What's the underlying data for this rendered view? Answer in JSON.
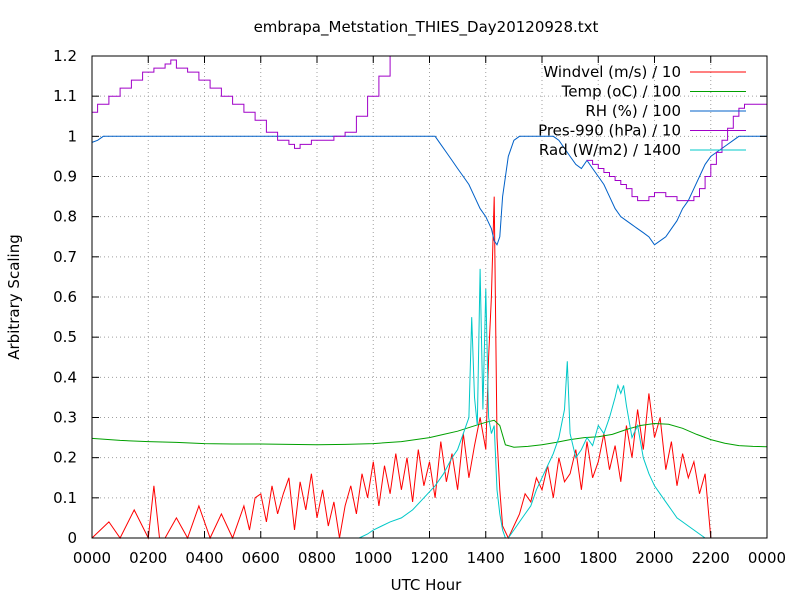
{
  "chart_data": {
    "type": "line",
    "title": "embrapa_Metstation_THIES_Day20120928.txt",
    "xlabel": "UTC Hour",
    "ylabel": "Arbitrary Scaling",
    "xlim": [
      0,
      2400
    ],
    "ylim": [
      0,
      1.2
    ],
    "x_ticks": [
      "0000",
      "0200",
      "0400",
      "0600",
      "0800",
      "1000",
      "1200",
      "1400",
      "1600",
      "1800",
      "2000",
      "2200",
      "0000"
    ],
    "y_ticks": [
      "0",
      "0.1",
      "0.2",
      "0.3",
      "0.4",
      "0.5",
      "0.6",
      "0.7",
      "0.8",
      "0.9",
      "1",
      "1.1",
      "1.2"
    ],
    "grid": true,
    "legend_position": "top-right",
    "series": [
      {
        "name": "Windvel (m/s) / 10",
        "color": "#ff0000",
        "x": [
          0,
          60,
          100,
          150,
          200,
          220,
          240,
          260,
          300,
          340,
          380,
          420,
          460,
          500,
          540,
          560,
          580,
          600,
          620,
          640,
          660,
          680,
          700,
          720,
          740,
          760,
          780,
          800,
          820,
          840,
          860,
          880,
          900,
          920,
          940,
          960,
          980,
          1000,
          1020,
          1040,
          1060,
          1080,
          1100,
          1120,
          1140,
          1160,
          1180,
          1200,
          1220,
          1240,
          1260,
          1280,
          1300,
          1320,
          1340,
          1360,
          1380,
          1400,
          1410,
          1420,
          1430,
          1440,
          1450,
          1460,
          1480,
          1500,
          1520,
          1540,
          1560,
          1580,
          1600,
          1620,
          1640,
          1660,
          1680,
          1700,
          1720,
          1740,
          1760,
          1780,
          1800,
          1820,
          1840,
          1860,
          1880,
          1900,
          1920,
          1940,
          1960,
          1980,
          2000,
          2020,
          2040,
          2060,
          2080,
          2100,
          2120,
          2140,
          2160,
          2180,
          2200
        ],
        "y": [
          0,
          0.04,
          0,
          0.07,
          0,
          0.13,
          0,
          0,
          0.05,
          0,
          0.08,
          0,
          0.06,
          0,
          0.08,
          0.02,
          0.1,
          0.11,
          0.04,
          0.13,
          0.06,
          0.11,
          0.15,
          0.02,
          0.14,
          0.07,
          0.16,
          0.05,
          0.12,
          0.03,
          0.09,
          0,
          0.08,
          0.13,
          0.06,
          0.16,
          0.1,
          0.19,
          0.08,
          0.18,
          0.11,
          0.21,
          0.12,
          0.2,
          0.09,
          0.22,
          0.13,
          0.19,
          0.1,
          0.24,
          0.14,
          0.21,
          0.12,
          0.26,
          0.15,
          0.23,
          0.3,
          0.22,
          0.45,
          0.6,
          0.85,
          0.25,
          0.12,
          0.03,
          0,
          0.03,
          0.06,
          0.11,
          0.09,
          0.15,
          0.12,
          0.18,
          0.1,
          0.2,
          0.14,
          0.16,
          0.22,
          0.12,
          0.24,
          0.15,
          0.19,
          0.26,
          0.17,
          0.23,
          0.14,
          0.28,
          0.2,
          0.32,
          0.22,
          0.36,
          0.25,
          0.3,
          0.17,
          0.24,
          0.13,
          0.21,
          0.15,
          0.19,
          0.11,
          0.16,
          0
        ]
      },
      {
        "name": "Temp (oC) / 100",
        "color": "#00a000",
        "x": [
          0,
          100,
          200,
          300,
          400,
          500,
          600,
          700,
          800,
          900,
          1000,
          1100,
          1200,
          1250,
          1300,
          1350,
          1400,
          1430,
          1450,
          1470,
          1500,
          1550,
          1600,
          1650,
          1700,
          1750,
          1800,
          1850,
          1900,
          1950,
          2000,
          2050,
          2100,
          2150,
          2200,
          2250,
          2300,
          2350,
          2400
        ],
        "y": [
          0.248,
          0.243,
          0.24,
          0.238,
          0.235,
          0.234,
          0.234,
          0.233,
          0.232,
          0.233,
          0.235,
          0.24,
          0.25,
          0.258,
          0.266,
          0.277,
          0.288,
          0.293,
          0.28,
          0.232,
          0.226,
          0.228,
          0.232,
          0.238,
          0.245,
          0.25,
          0.252,
          0.258,
          0.27,
          0.28,
          0.285,
          0.283,
          0.273,
          0.258,
          0.245,
          0.236,
          0.23,
          0.228,
          0.227
        ]
      },
      {
        "name": "RH (%) / 100",
        "color": "#0060c8",
        "x": [
          0,
          20,
          40,
          60,
          80,
          1220,
          1240,
          1260,
          1280,
          1300,
          1320,
          1340,
          1360,
          1380,
          1400,
          1420,
          1430,
          1440,
          1450,
          1460,
          1480,
          1500,
          1520,
          1600,
          1640,
          1660,
          1680,
          1700,
          1720,
          1740,
          1760,
          1780,
          1800,
          1820,
          1840,
          1860,
          1880,
          1900,
          1920,
          1940,
          1960,
          1980,
          2000,
          2020,
          2040,
          2060,
          2080,
          2100,
          2120,
          2140,
          2160,
          2180,
          2200,
          2220,
          2240,
          2260,
          2280,
          2300,
          2400
        ],
        "y": [
          0.985,
          0.99,
          1,
          1,
          1,
          1,
          0.98,
          0.96,
          0.94,
          0.92,
          0.9,
          0.88,
          0.85,
          0.82,
          0.8,
          0.77,
          0.74,
          0.73,
          0.75,
          0.85,
          0.95,
          0.99,
          1,
          1,
          1,
          0.99,
          0.97,
          0.95,
          0.93,
          0.92,
          0.94,
          0.92,
          0.9,
          0.88,
          0.85,
          0.82,
          0.8,
          0.79,
          0.78,
          0.77,
          0.76,
          0.75,
          0.73,
          0.74,
          0.75,
          0.77,
          0.79,
          0.82,
          0.84,
          0.87,
          0.9,
          0.93,
          0.95,
          0.96,
          0.97,
          0.98,
          0.99,
          1,
          1
        ]
      },
      {
        "name": "Pres-990 (hPa) / 10",
        "color": "#a000c8",
        "x": [
          0,
          20,
          60,
          100,
          140,
          180,
          220,
          260,
          280,
          300,
          340,
          380,
          420,
          460,
          500,
          540,
          580,
          620,
          660,
          700,
          720,
          740,
          780,
          820,
          860,
          900,
          940,
          980,
          1020,
          1060,
          1070,
          1080
        ],
        "y": [
          1.06,
          1.08,
          1.1,
          1.12,
          1.14,
          1.16,
          1.17,
          1.18,
          1.19,
          1.17,
          1.16,
          1.14,
          1.12,
          1.1,
          1.08,
          1.06,
          1.04,
          1.01,
          0.99,
          0.98,
          0.97,
          0.98,
          0.99,
          0.99,
          1,
          1.01,
          1.05,
          1.1,
          1.15,
          1.2,
          1.21,
          1.22
        ],
        "x2": [
          1760,
          1780,
          1800,
          1820,
          1840,
          1860,
          1880,
          1900,
          1920,
          1940,
          1960,
          1980,
          2000,
          2020,
          2040,
          2060,
          2080,
          2100,
          2120,
          2140,
          2160,
          2180,
          2200,
          2220,
          2240,
          2260,
          2280,
          2300,
          2320,
          2340,
          2400
        ],
        "y2": [
          0.94,
          0.93,
          0.92,
          0.91,
          0.9,
          0.89,
          0.88,
          0.87,
          0.85,
          0.84,
          0.84,
          0.85,
          0.86,
          0.86,
          0.85,
          0.85,
          0.84,
          0.84,
          0.84,
          0.85,
          0.87,
          0.9,
          0.93,
          0.96,
          0.99,
          1.02,
          1.05,
          1.07,
          1.08,
          1.08,
          1.08
        ]
      },
      {
        "name": "Rad (W/m2) / 1400",
        "color": "#00c8c8",
        "x": [
          950,
          980,
          1000,
          1030,
          1060,
          1100,
          1140,
          1180,
          1220,
          1250,
          1280,
          1300,
          1320,
          1340,
          1350,
          1360,
          1370,
          1380,
          1390,
          1400,
          1410,
          1420,
          1430,
          1440,
          1450,
          1460,
          1470,
          1480,
          1490,
          1500,
          1520,
          1540,
          1560,
          1580,
          1600,
          1620,
          1640,
          1660,
          1680,
          1690,
          1700,
          1720,
          1740,
          1760,
          1780,
          1800,
          1820,
          1840,
          1860,
          1870,
          1880,
          1890,
          1900,
          1920,
          1940,
          1960,
          1980,
          2000,
          2020,
          2040,
          2060,
          2080,
          2100,
          2120,
          2140,
          2160,
          2180,
          2200
        ],
        "y": [
          0,
          0.01,
          0.02,
          0.03,
          0.04,
          0.05,
          0.07,
          0.1,
          0.13,
          0.16,
          0.2,
          0.22,
          0.26,
          0.3,
          0.55,
          0.35,
          0.28,
          0.67,
          0.32,
          0.62,
          0.3,
          0.26,
          0.28,
          0.12,
          0.06,
          0.02,
          0.0,
          0.0,
          0.01,
          0.02,
          0.04,
          0.06,
          0.08,
          0.12,
          0.15,
          0.18,
          0.21,
          0.25,
          0.32,
          0.44,
          0.26,
          0.2,
          0.22,
          0.25,
          0.23,
          0.28,
          0.26,
          0.3,
          0.35,
          0.38,
          0.36,
          0.38,
          0.33,
          0.25,
          0.28,
          0.2,
          0.16,
          0.13,
          0.11,
          0.09,
          0.07,
          0.05,
          0.04,
          0.03,
          0.02,
          0.01,
          0.0,
          0.0
        ]
      }
    ]
  }
}
